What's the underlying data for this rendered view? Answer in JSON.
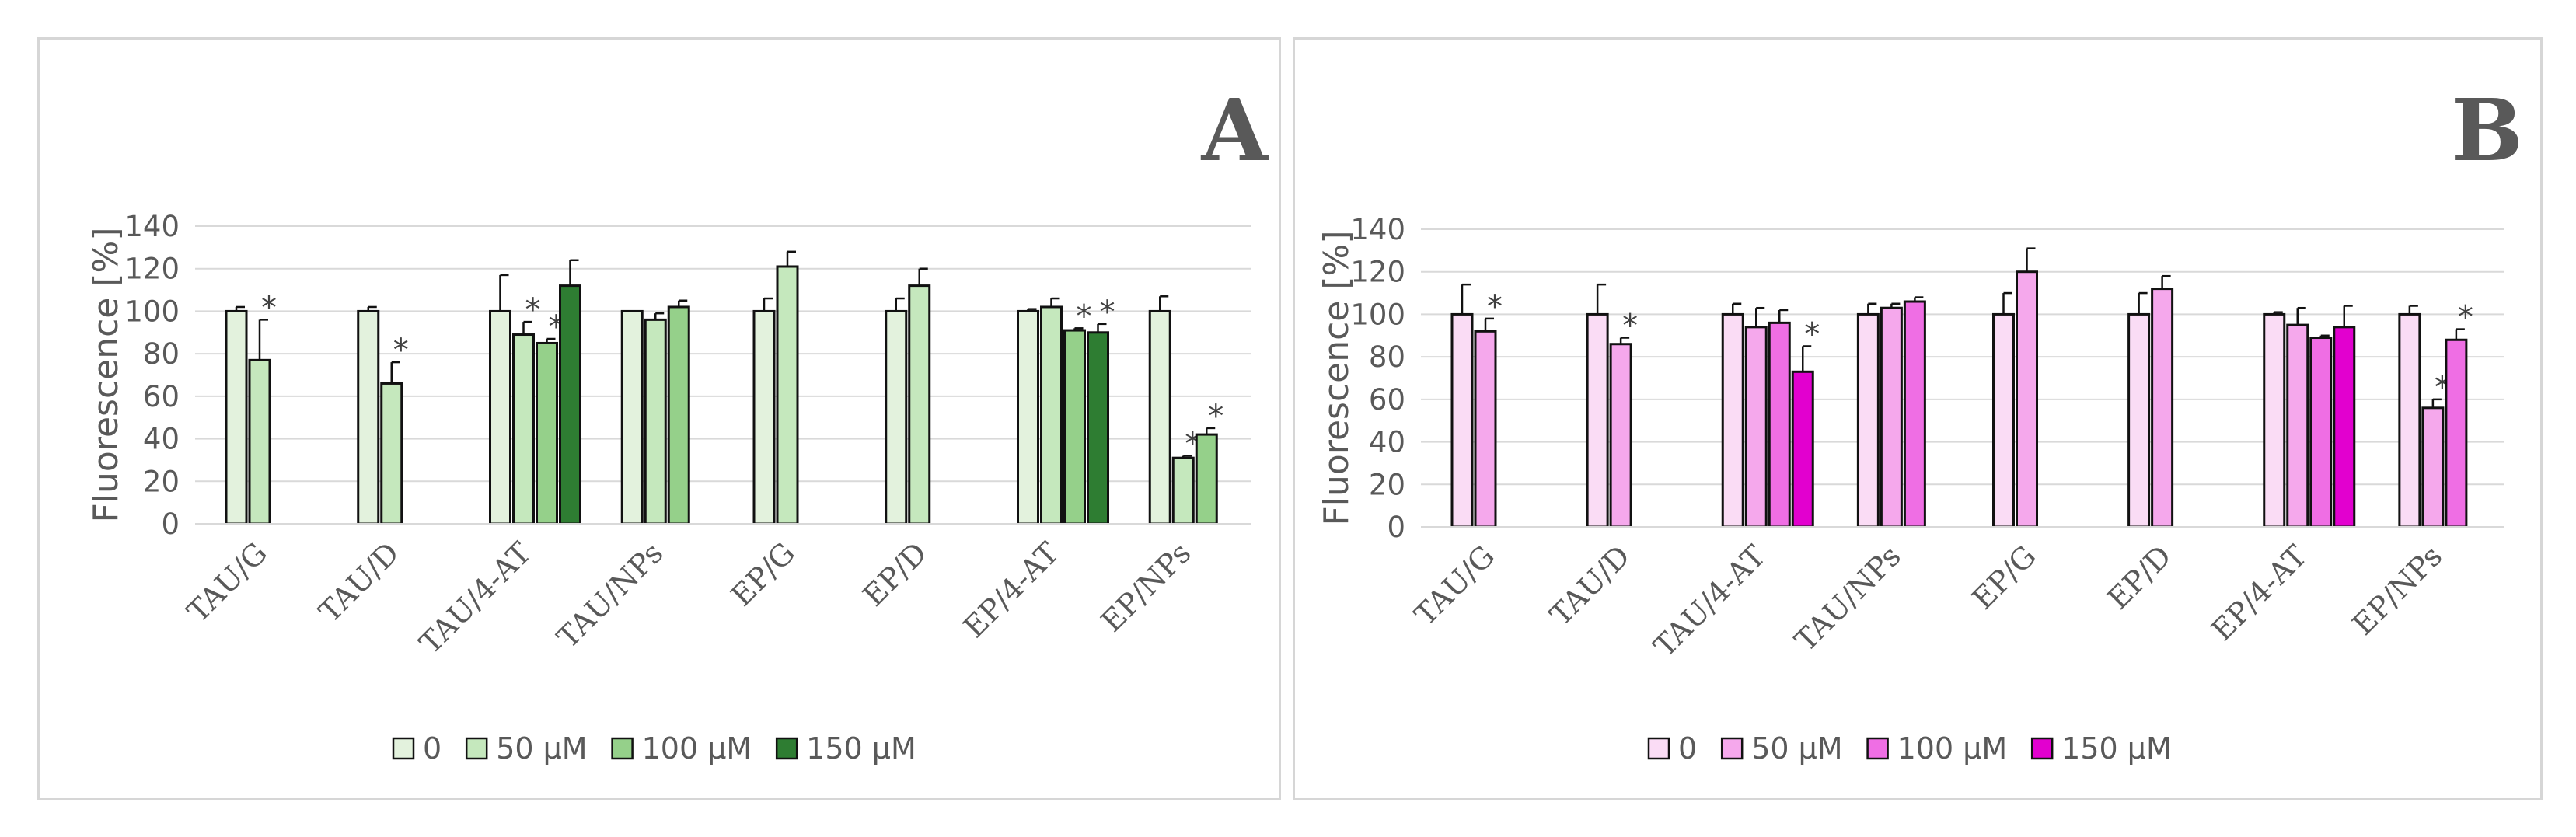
{
  "chart_data": [
    {
      "type": "bar",
      "panel_label": "A",
      "ylabel": "Fluorescence [%]",
      "ylim": [
        0,
        140
      ],
      "yticks": [
        0,
        20,
        40,
        60,
        80,
        100,
        120,
        140
      ],
      "categories": [
        "TAU/G",
        "TAU/D",
        "TAU/4-AT",
        "TAU/NPs",
        "EP/G",
        "EP/D",
        "EP/4-AT",
        "EP/NPs"
      ],
      "legend": [
        "0",
        "50 µM",
        "100 µM",
        "150 µM"
      ],
      "colors": [
        "#e3f2dd",
        "#c5e8bd",
        "#95d08a",
        "#2e7d32"
      ],
      "series": [
        {
          "name": "0",
          "values": [
            100,
            100,
            100,
            100,
            100,
            100,
            100,
            100
          ],
          "errors": [
            2,
            2,
            17,
            0,
            6,
            6,
            1,
            7
          ],
          "stars": [
            false,
            false,
            false,
            false,
            false,
            false,
            false,
            false
          ]
        },
        {
          "name": "50 µM",
          "values": [
            77,
            66,
            89,
            96,
            121,
            112,
            102,
            31
          ],
          "errors": [
            19,
            10,
            6,
            3,
            7,
            8,
            4,
            1
          ],
          "stars": [
            true,
            true,
            true,
            false,
            false,
            false,
            false,
            true
          ]
        },
        {
          "name": "100 µM",
          "values": [
            null,
            null,
            85,
            102,
            null,
            null,
            91,
            42
          ],
          "errors": [
            null,
            null,
            2,
            3,
            null,
            null,
            1,
            3
          ],
          "stars": [
            false,
            false,
            true,
            false,
            false,
            false,
            true,
            true
          ]
        },
        {
          "name": "150 µM",
          "values": [
            null,
            null,
            112,
            null,
            null,
            null,
            90,
            null
          ],
          "errors": [
            null,
            null,
            12,
            null,
            null,
            null,
            4,
            null
          ],
          "stars": [
            false,
            false,
            false,
            false,
            false,
            false,
            true,
            false
          ]
        }
      ]
    },
    {
      "type": "bar",
      "panel_label": "B",
      "ylabel": "Fluorescence [%]",
      "ylim": [
        0,
        140
      ],
      "yticks": [
        0,
        20,
        40,
        60,
        80,
        100,
        120,
        140
      ],
      "categories": [
        "TAU/G",
        "TAU/D",
        "TAU/4-AT",
        "TAU/NPs",
        "EP/G",
        "EP/D",
        "EP/4-AT",
        "EP/NPs"
      ],
      "legend": [
        "0",
        "50 µM",
        "100 µM",
        "150 µM"
      ],
      "colors": [
        "#fadcf5",
        "#f5a8ec",
        "#ef6ee4",
        "#e200cf"
      ],
      "series": [
        {
          "name": "0",
          "values": [
            100,
            100,
            100,
            100,
            100,
            100,
            100,
            100
          ],
          "errors": [
            14,
            14,
            5,
            5,
            10,
            10,
            1,
            4
          ],
          "stars": [
            false,
            false,
            false,
            false,
            false,
            false,
            false,
            false
          ]
        },
        {
          "name": "50 µM",
          "values": [
            92,
            86,
            94,
            103,
            120,
            112,
            95,
            56
          ],
          "errors": [
            6,
            3,
            9,
            2,
            11,
            6,
            8,
            4
          ],
          "stars": [
            true,
            true,
            false,
            false,
            false,
            false,
            false,
            true
          ]
        },
        {
          "name": "100 µM",
          "values": [
            null,
            null,
            96,
            106,
            null,
            null,
            89,
            88
          ],
          "errors": [
            null,
            null,
            6,
            2,
            null,
            null,
            1,
            5
          ],
          "stars": [
            false,
            false,
            false,
            false,
            false,
            false,
            false,
            true
          ]
        },
        {
          "name": "150 µM",
          "values": [
            null,
            null,
            73,
            null,
            null,
            null,
            94,
            null
          ],
          "errors": [
            null,
            null,
            12,
            null,
            null,
            null,
            10,
            null
          ],
          "stars": [
            false,
            false,
            true,
            false,
            false,
            false,
            false,
            false
          ]
        }
      ]
    }
  ],
  "significance_marker": "*"
}
